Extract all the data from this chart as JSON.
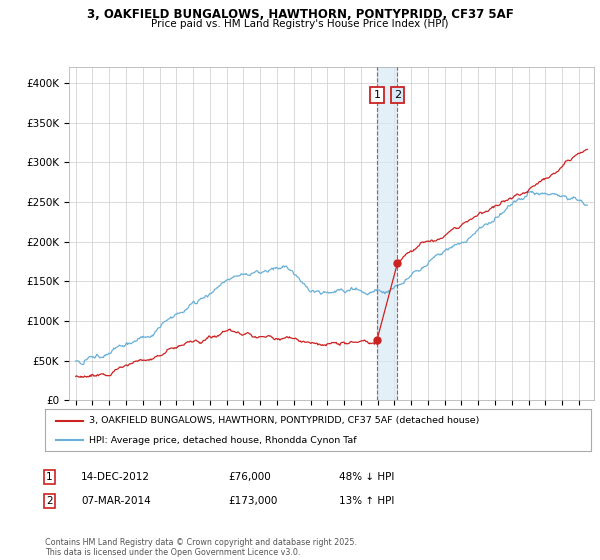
{
  "title1": "3, OAKFIELD BUNGALOWS, HAWTHORN, PONTYPRIDD, CF37 5AF",
  "title2": "Price paid vs. HM Land Registry's House Price Index (HPI)",
  "ylabel_ticks": [
    "£0",
    "£50K",
    "£100K",
    "£150K",
    "£200K",
    "£250K",
    "£300K",
    "£350K",
    "£400K"
  ],
  "ytick_vals": [
    0,
    50000,
    100000,
    150000,
    200000,
    250000,
    300000,
    350000,
    400000
  ],
  "ylim": [
    0,
    420000
  ],
  "hpi_color": "#6ab0d8",
  "price_color": "#cc2222",
  "dashed_color": "#cc2222",
  "span_color": "#d8eaf5",
  "transaction1": {
    "label": "1",
    "date": "14-DEC-2012",
    "price": 76000,
    "pct": "48% ↓ HPI",
    "year_decimal": 2012.96
  },
  "transaction2": {
    "label": "2",
    "date": "07-MAR-2014",
    "price": 173000,
    "pct": "13% ↑ HPI",
    "year_decimal": 2014.18
  },
  "legend_entry1": "3, OAKFIELD BUNGALOWS, HAWTHORN, PONTYPRIDD, CF37 5AF (detached house)",
  "legend_entry2": "HPI: Average price, detached house, Rhondda Cynon Taf",
  "footnote": "Contains HM Land Registry data © Crown copyright and database right 2025.\nThis data is licensed under the Open Government Licence v3.0.",
  "background_color": "#ffffff",
  "grid_color": "#cccccc"
}
